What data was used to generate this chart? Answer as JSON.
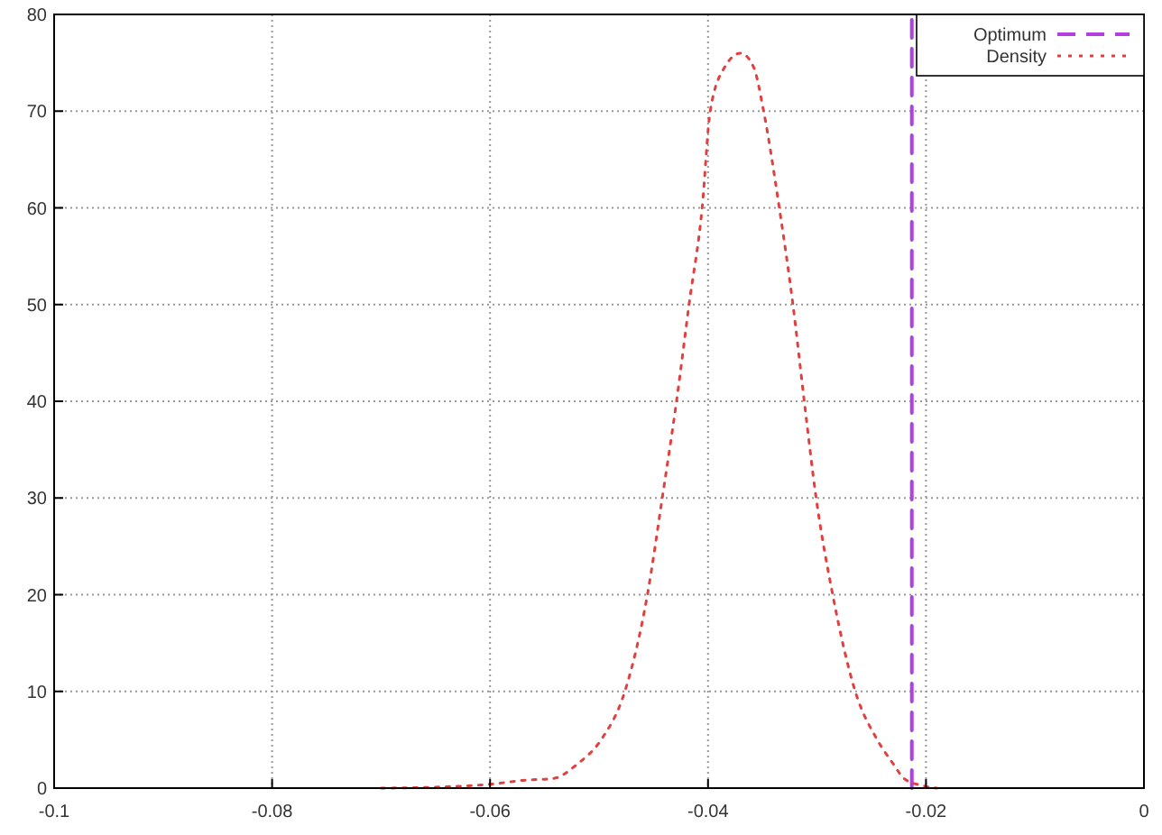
{
  "chart_data": {
    "type": "line",
    "xlim": [
      -0.1,
      0
    ],
    "xticks": [
      -0.1,
      -0.08,
      -0.06,
      -0.04,
      -0.02,
      0
    ],
    "ylim": [
      0,
      80
    ],
    "yticks": [
      0,
      10,
      20,
      30,
      40,
      50,
      60,
      70,
      80
    ],
    "grid": true,
    "legend": "top right",
    "series": [
      {
        "name": "Optimum",
        "color": "#b040e0",
        "line_style": "dashed",
        "x": [
          -0.0213,
          -0.0213
        ],
        "values": [
          0,
          80
        ]
      },
      {
        "name": "Density",
        "color": "#e04040",
        "line_style": "dotted",
        "x": [
          -0.07,
          -0.065,
          -0.06,
          -0.057,
          -0.05417,
          -0.05198,
          -0.04981,
          -0.04763,
          -0.04556,
          -0.0442,
          -0.04289,
          -0.04174,
          -0.04054,
          -0.0398,
          -0.0385,
          -0.037,
          -0.0358,
          -0.0349,
          -0.03346,
          -0.03221,
          -0.03117,
          -0.03008,
          -0.02856,
          -0.02649,
          -0.02447,
          -0.023,
          -0.02202,
          -0.0205,
          -0.019
        ],
        "values": [
          0,
          0.1,
          0.4,
          0.8,
          1,
          2.5,
          5,
          10,
          20,
          30,
          40,
          50,
          60,
          70,
          74.5,
          76,
          74.5,
          70,
          60,
          50,
          40,
          30,
          20,
          10,
          5,
          2.5,
          1,
          0.3,
          0
        ]
      }
    ]
  }
}
